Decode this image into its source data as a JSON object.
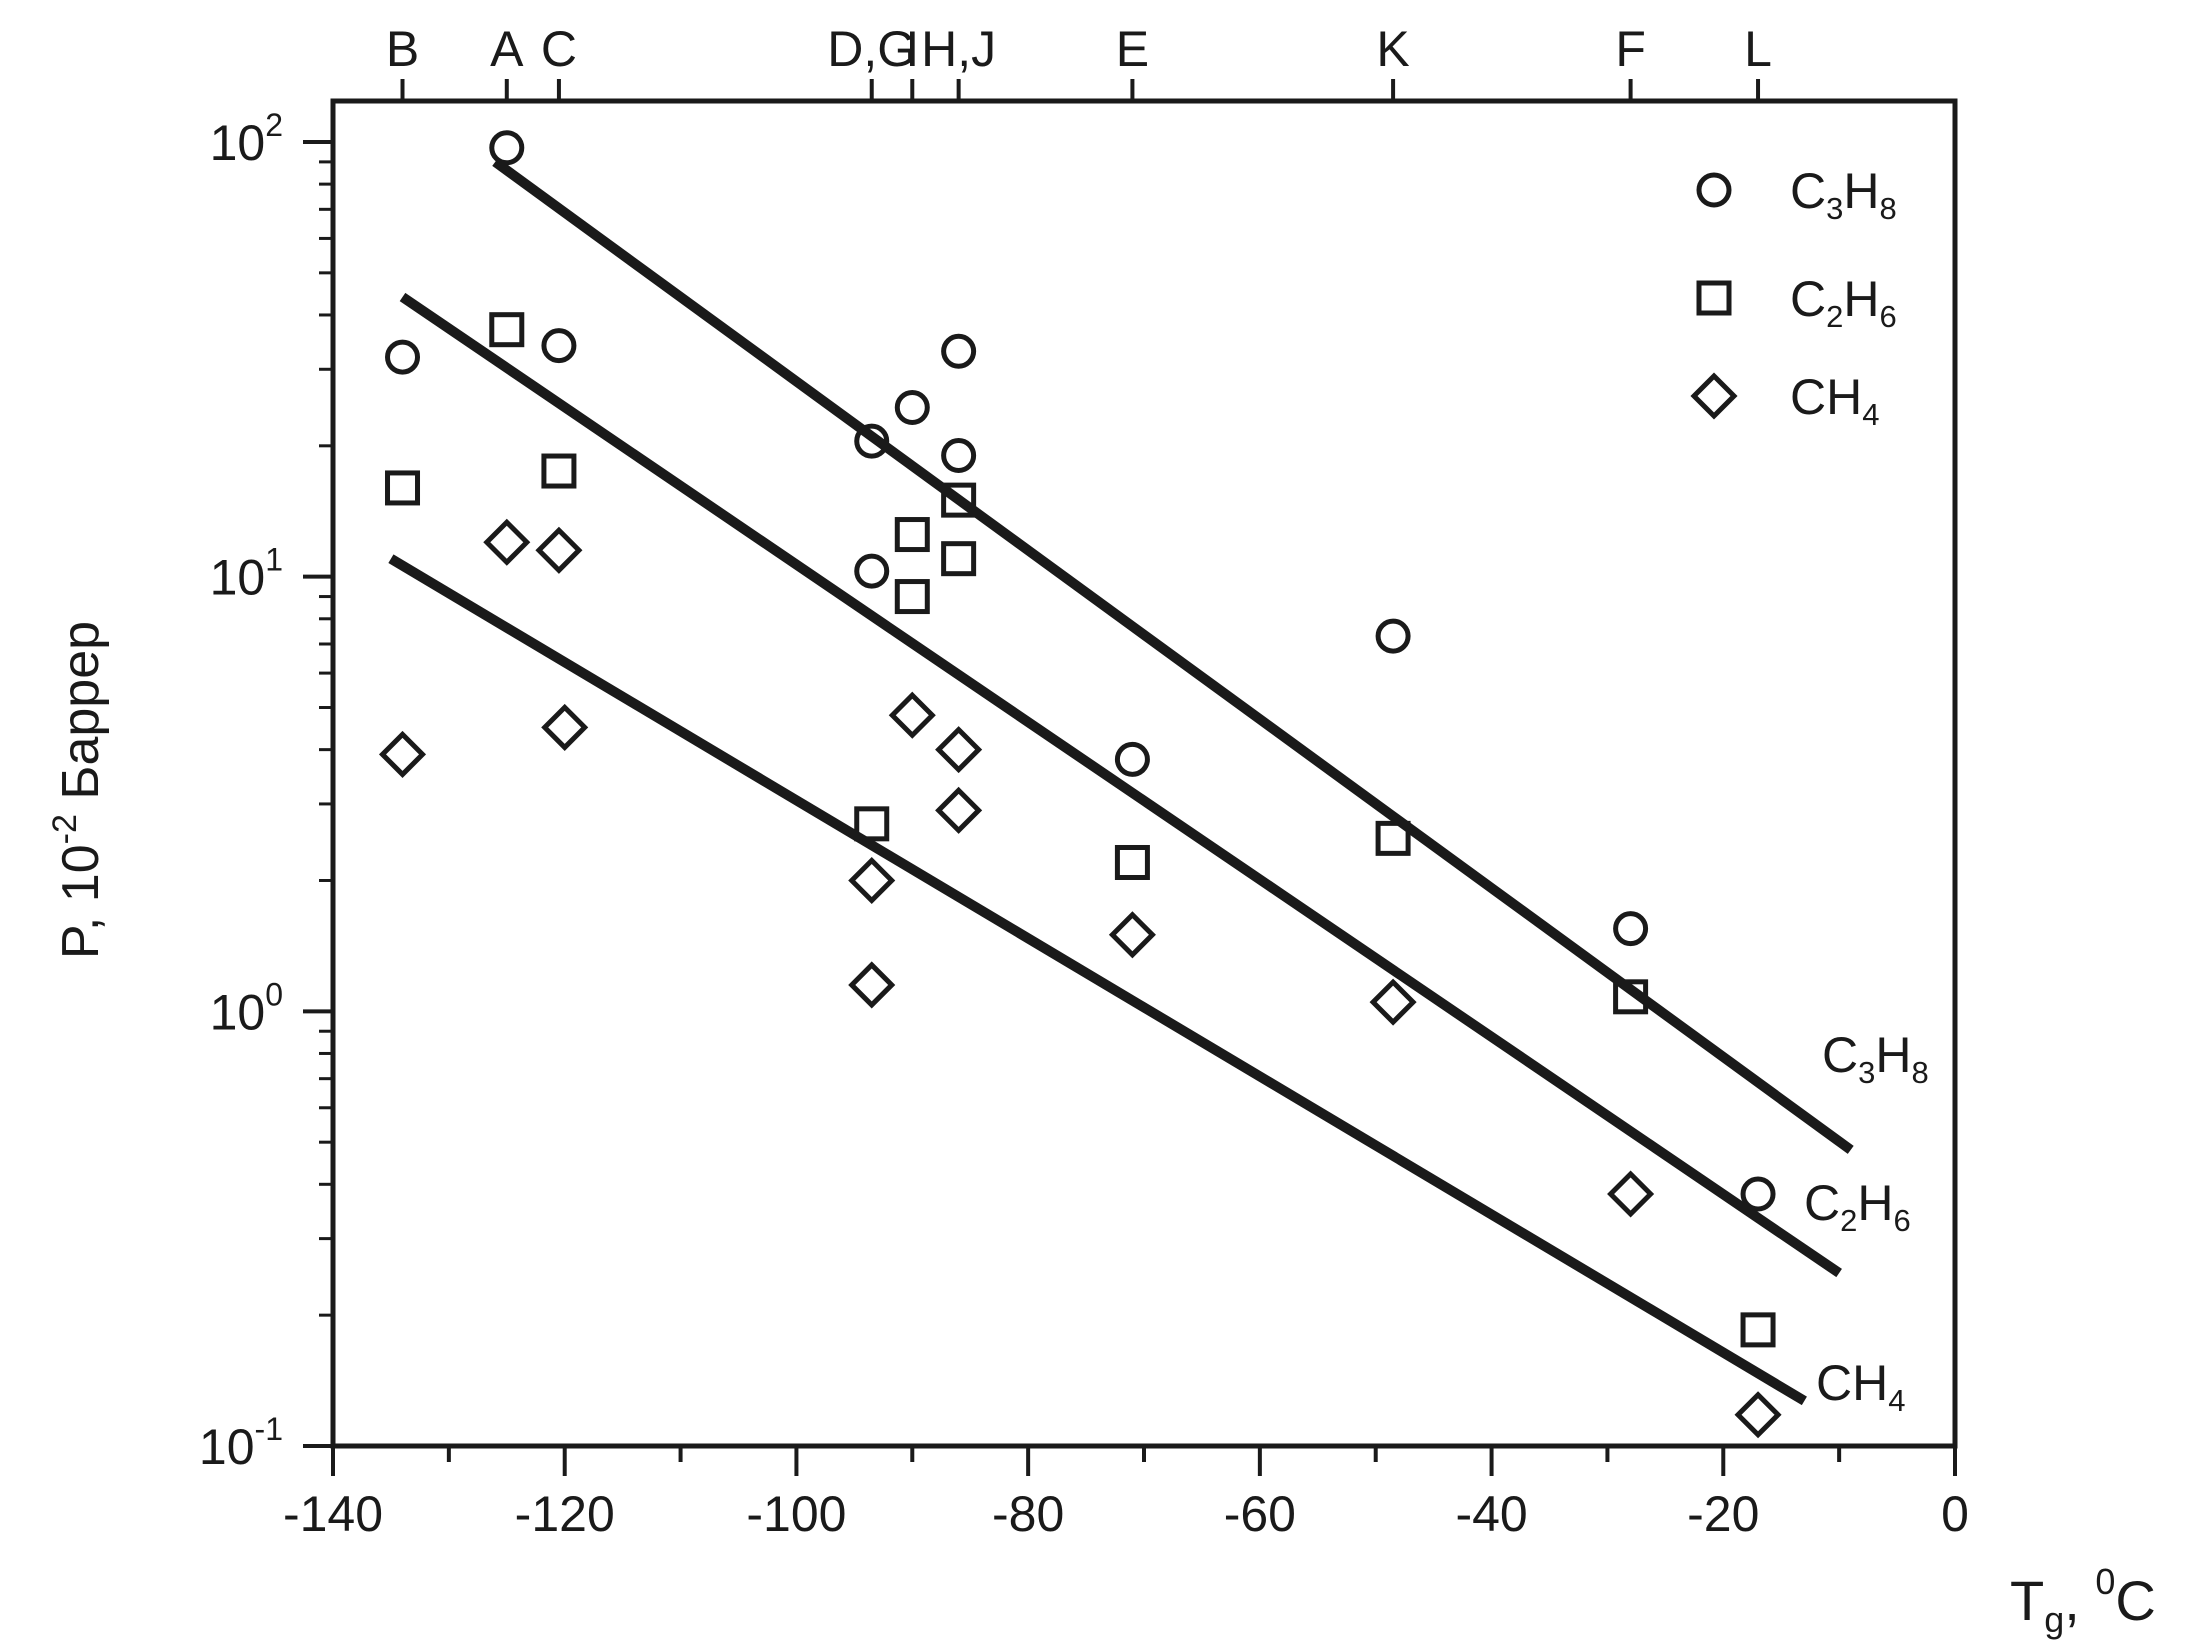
{
  "chart_data": {
    "type": "scatter",
    "x_axis": {
      "label_main": "T",
      "label_sub": "g",
      "label_sep": ",",
      "label_sup": "0",
      "label_unit": "C",
      "range": [
        -140,
        0
      ],
      "major_step": 20,
      "minor_step": 10,
      "tick_labels": [
        "-140",
        "-120",
        "-100",
        "-80",
        "-60",
        "-40",
        "-20",
        "0"
      ]
    },
    "y_axis": {
      "label_main": "P, 10",
      "label_sup": "-2",
      "label_unit": "Баррер",
      "scale": "log",
      "range": [
        0.1,
        100
      ],
      "tick_labels": [
        {
          "base": "10",
          "exp": "-1",
          "value": 0.1
        },
        {
          "base": "10",
          "exp": "0",
          "value": 1
        },
        {
          "base": "10",
          "exp": "1",
          "value": 10
        },
        {
          "base": "10",
          "exp": "2",
          "value": 100
        }
      ]
    },
    "top_axis": {
      "polymers": [
        {
          "label": "B",
          "tg": -134
        },
        {
          "label": "A",
          "tg": -125
        },
        {
          "label": "C",
          "tg": -120.5
        },
        {
          "label": "D,G",
          "tg": -93.5
        },
        {
          "label": "I",
          "tg": -90
        },
        {
          "label": "H,J",
          "tg": -86
        },
        {
          "label": "E",
          "tg": -71
        },
        {
          "label": "K",
          "tg": -48.5
        },
        {
          "label": "F",
          "tg": -28
        },
        {
          "label": "L",
          "tg": -17
        }
      ]
    },
    "legend": {
      "position": "top-right",
      "entries": [
        {
          "marker": "circle",
          "base": "C",
          "s1": "3",
          "mid": "H",
          "s2": "8"
        },
        {
          "marker": "square",
          "base": "C",
          "s1": "2",
          "mid": "H",
          "s2": "6"
        },
        {
          "marker": "diamond",
          "base": "CH",
          "s1": "4",
          "mid": "",
          "s2": ""
        }
      ]
    },
    "series": [
      {
        "name": "C3H8",
        "marker": "circle",
        "points": [
          {
            "x": -125,
            "y": 97
          },
          {
            "x": -134,
            "y": 32
          },
          {
            "x": -120.5,
            "y": 34
          },
          {
            "x": -93.5,
            "y": 20.5
          },
          {
            "x": -93.5,
            "y": 10.3
          },
          {
            "x": -90,
            "y": 24.5
          },
          {
            "x": -86,
            "y": 33
          },
          {
            "x": -86,
            "y": 19
          },
          {
            "x": -71,
            "y": 3.8
          },
          {
            "x": -48.5,
            "y": 7.3
          },
          {
            "x": -28,
            "y": 1.55
          },
          {
            "x": -17,
            "y": 0.38
          }
        ],
        "fit": {
          "x": [
            -126,
            -9
          ],
          "y": [
            90,
            0.48
          ]
        },
        "fit_label": {
          "base": "C",
          "s1": "3",
          "mid": "H",
          "s2": "8"
        }
      },
      {
        "name": "C2H6",
        "marker": "square",
        "points": [
          {
            "x": -134,
            "y": 16
          },
          {
            "x": -125,
            "y": 37
          },
          {
            "x": -120.5,
            "y": 17.5
          },
          {
            "x": -93.5,
            "y": 2.7
          },
          {
            "x": -90,
            "y": 12.5
          },
          {
            "x": -90,
            "y": 9
          },
          {
            "x": -86,
            "y": 15
          },
          {
            "x": -86,
            "y": 11
          },
          {
            "x": -71,
            "y": 2.2
          },
          {
            "x": -48.5,
            "y": 2.5
          },
          {
            "x": -28,
            "y": 1.08
          },
          {
            "x": -17,
            "y": 0.185
          }
        ],
        "fit": {
          "x": [
            -134,
            -10
          ],
          "y": [
            44,
            0.25
          ]
        },
        "fit_label": {
          "base": "C",
          "s1": "2",
          "mid": "H",
          "s2": "6"
        }
      },
      {
        "name": "CH4",
        "marker": "diamond",
        "points": [
          {
            "x": -134,
            "y": 3.9
          },
          {
            "x": -125,
            "y": 12
          },
          {
            "x": -120.5,
            "y": 11.5
          },
          {
            "x": -120,
            "y": 4.5
          },
          {
            "x": -93.5,
            "y": 2
          },
          {
            "x": -93.5,
            "y": 1.15
          },
          {
            "x": -90,
            "y": 4.8
          },
          {
            "x": -86,
            "y": 4
          },
          {
            "x": -86,
            "y": 2.9
          },
          {
            "x": -71,
            "y": 1.5
          },
          {
            "x": -48.5,
            "y": 1.05
          },
          {
            "x": -28,
            "y": 0.38
          },
          {
            "x": -17,
            "y": 0.118
          }
        ],
        "fit": {
          "x": [
            -135,
            -13
          ],
          "y": [
            11,
            0.127
          ]
        },
        "fit_label": {
          "base": "CH",
          "s1": "4",
          "mid": "",
          "s2": ""
        }
      }
    ]
  }
}
